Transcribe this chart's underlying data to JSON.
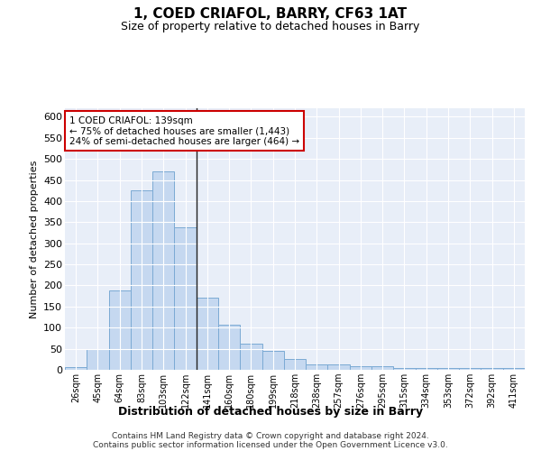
{
  "title": "1, COED CRIAFOL, BARRY, CF63 1AT",
  "subtitle": "Size of property relative to detached houses in Barry",
  "xlabel": "Distribution of detached houses by size in Barry",
  "ylabel": "Number of detached properties",
  "categories": [
    "26sqm",
    "45sqm",
    "64sqm",
    "83sqm",
    "103sqm",
    "122sqm",
    "141sqm",
    "160sqm",
    "180sqm",
    "199sqm",
    "218sqm",
    "238sqm",
    "257sqm",
    "276sqm",
    "295sqm",
    "315sqm",
    "334sqm",
    "353sqm",
    "372sqm",
    "392sqm",
    "411sqm"
  ],
  "values": [
    6,
    50,
    188,
    425,
    470,
    338,
    170,
    107,
    62,
    45,
    25,
    12,
    12,
    9,
    8,
    5,
    4,
    5,
    5,
    4,
    4
  ],
  "bar_color": "#c5d8f0",
  "bar_edge_color": "#7baad4",
  "vline_x_idx": 5.5,
  "vline_color": "#222222",
  "annotation_line1": "1 COED CRIAFOL: 139sqm",
  "annotation_line2": "← 75% of detached houses are smaller (1,443)",
  "annotation_line3": "24% of semi-detached houses are larger (464) →",
  "annotation_box_facecolor": "#ffffff",
  "annotation_box_edgecolor": "#cc0000",
  "bg_color": "#e8eef8",
  "plot_bg_color": "#e8eef8",
  "grid_color": "#ffffff",
  "footer_line1": "Contains HM Land Registry data © Crown copyright and database right 2024.",
  "footer_line2": "Contains public sector information licensed under the Open Government Licence v3.0.",
  "ylim": [
    0,
    620
  ],
  "yticks": [
    0,
    50,
    100,
    150,
    200,
    250,
    300,
    350,
    400,
    450,
    500,
    550,
    600
  ]
}
